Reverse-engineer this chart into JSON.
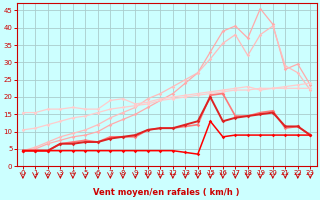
{
  "x": [
    0,
    1,
    2,
    3,
    4,
    5,
    6,
    7,
    8,
    9,
    10,
    11,
    12,
    13,
    14,
    15,
    16,
    17,
    18,
    19,
    20,
    21,
    22,
    23
  ],
  "series": [
    {
      "color": "#ffaaaa",
      "lw": 0.9,
      "values": [
        4.5,
        5.0,
        6.5,
        7.5,
        8.5,
        9.0,
        10.0,
        12.0,
        13.5,
        15.0,
        17.0,
        19.0,
        21.0,
        24.0,
        27.0,
        33.0,
        39.0,
        40.5,
        37.0,
        45.5,
        41.0,
        28.0,
        29.5,
        23.5
      ]
    },
    {
      "color": "#ffbbbb",
      "lw": 0.9,
      "values": [
        4.5,
        5.5,
        7.0,
        8.5,
        9.5,
        10.5,
        12.0,
        14.0,
        15.5,
        17.0,
        19.5,
        21.0,
        23.0,
        25.0,
        27.0,
        31.0,
        35.5,
        38.0,
        32.0,
        38.0,
        40.5,
        29.0,
        27.0,
        22.0
      ]
    },
    {
      "color": "#ffcccc",
      "lw": 0.9,
      "values": [
        10.5,
        11.0,
        12.0,
        13.0,
        14.0,
        14.5,
        15.5,
        16.5,
        17.0,
        17.5,
        18.0,
        19.0,
        19.5,
        20.0,
        20.5,
        21.0,
        21.5,
        22.0,
        22.0,
        22.5,
        22.5,
        23.0,
        23.5,
        24.0
      ]
    },
    {
      "color": "#ffcccc",
      "lw": 0.9,
      "values": [
        15.5,
        15.5,
        16.5,
        16.5,
        17.0,
        16.5,
        16.5,
        19.0,
        19.5,
        18.0,
        18.5,
        19.5,
        20.0,
        20.5,
        21.0,
        21.5,
        22.0,
        22.5,
        23.0,
        22.0,
        22.5,
        22.5,
        22.5,
        22.5
      ]
    },
    {
      "color": "#ff7777",
      "lw": 1.2,
      "values": [
        4.5,
        4.5,
        4.5,
        6.5,
        7.0,
        7.5,
        7.0,
        8.5,
        8.5,
        8.5,
        10.5,
        11.0,
        11.0,
        11.5,
        12.0,
        20.5,
        21.0,
        14.5,
        14.5,
        15.5,
        16.0,
        11.0,
        11.5,
        9.0
      ]
    },
    {
      "color": "#dd2222",
      "lw": 1.4,
      "values": [
        4.5,
        4.5,
        4.5,
        6.5,
        6.5,
        7.0,
        7.0,
        8.0,
        8.5,
        9.0,
        10.5,
        11.0,
        11.0,
        12.0,
        13.0,
        20.0,
        13.0,
        14.0,
        14.5,
        15.0,
        15.5,
        11.5,
        11.5,
        9.0
      ]
    },
    {
      "color": "#ff0000",
      "lw": 1.1,
      "values": [
        4.5,
        4.5,
        4.5,
        4.5,
        4.5,
        4.5,
        4.5,
        4.5,
        4.5,
        4.5,
        4.5,
        4.5,
        4.5,
        4.0,
        3.5,
        13.0,
        8.5,
        9.0,
        9.0,
        9.0,
        9.0,
        9.0,
        9.0,
        9.0
      ]
    }
  ],
  "xlabel": "Vent moyen/en rafales ( km/h )",
  "xlim": [
    -0.5,
    23.5
  ],
  "ylim": [
    0,
    47
  ],
  "yticks": [
    0,
    5,
    10,
    15,
    20,
    25,
    30,
    35,
    40,
    45
  ],
  "xticks": [
    0,
    1,
    2,
    3,
    4,
    5,
    6,
    7,
    8,
    9,
    10,
    11,
    12,
    13,
    14,
    15,
    16,
    17,
    18,
    19,
    20,
    21,
    22,
    23
  ],
  "bg_color": "#ccffff",
  "grid_color": "#aacccc",
  "tick_color": "#cc0000",
  "label_color": "#cc0000",
  "spine_color": "#cc0000"
}
